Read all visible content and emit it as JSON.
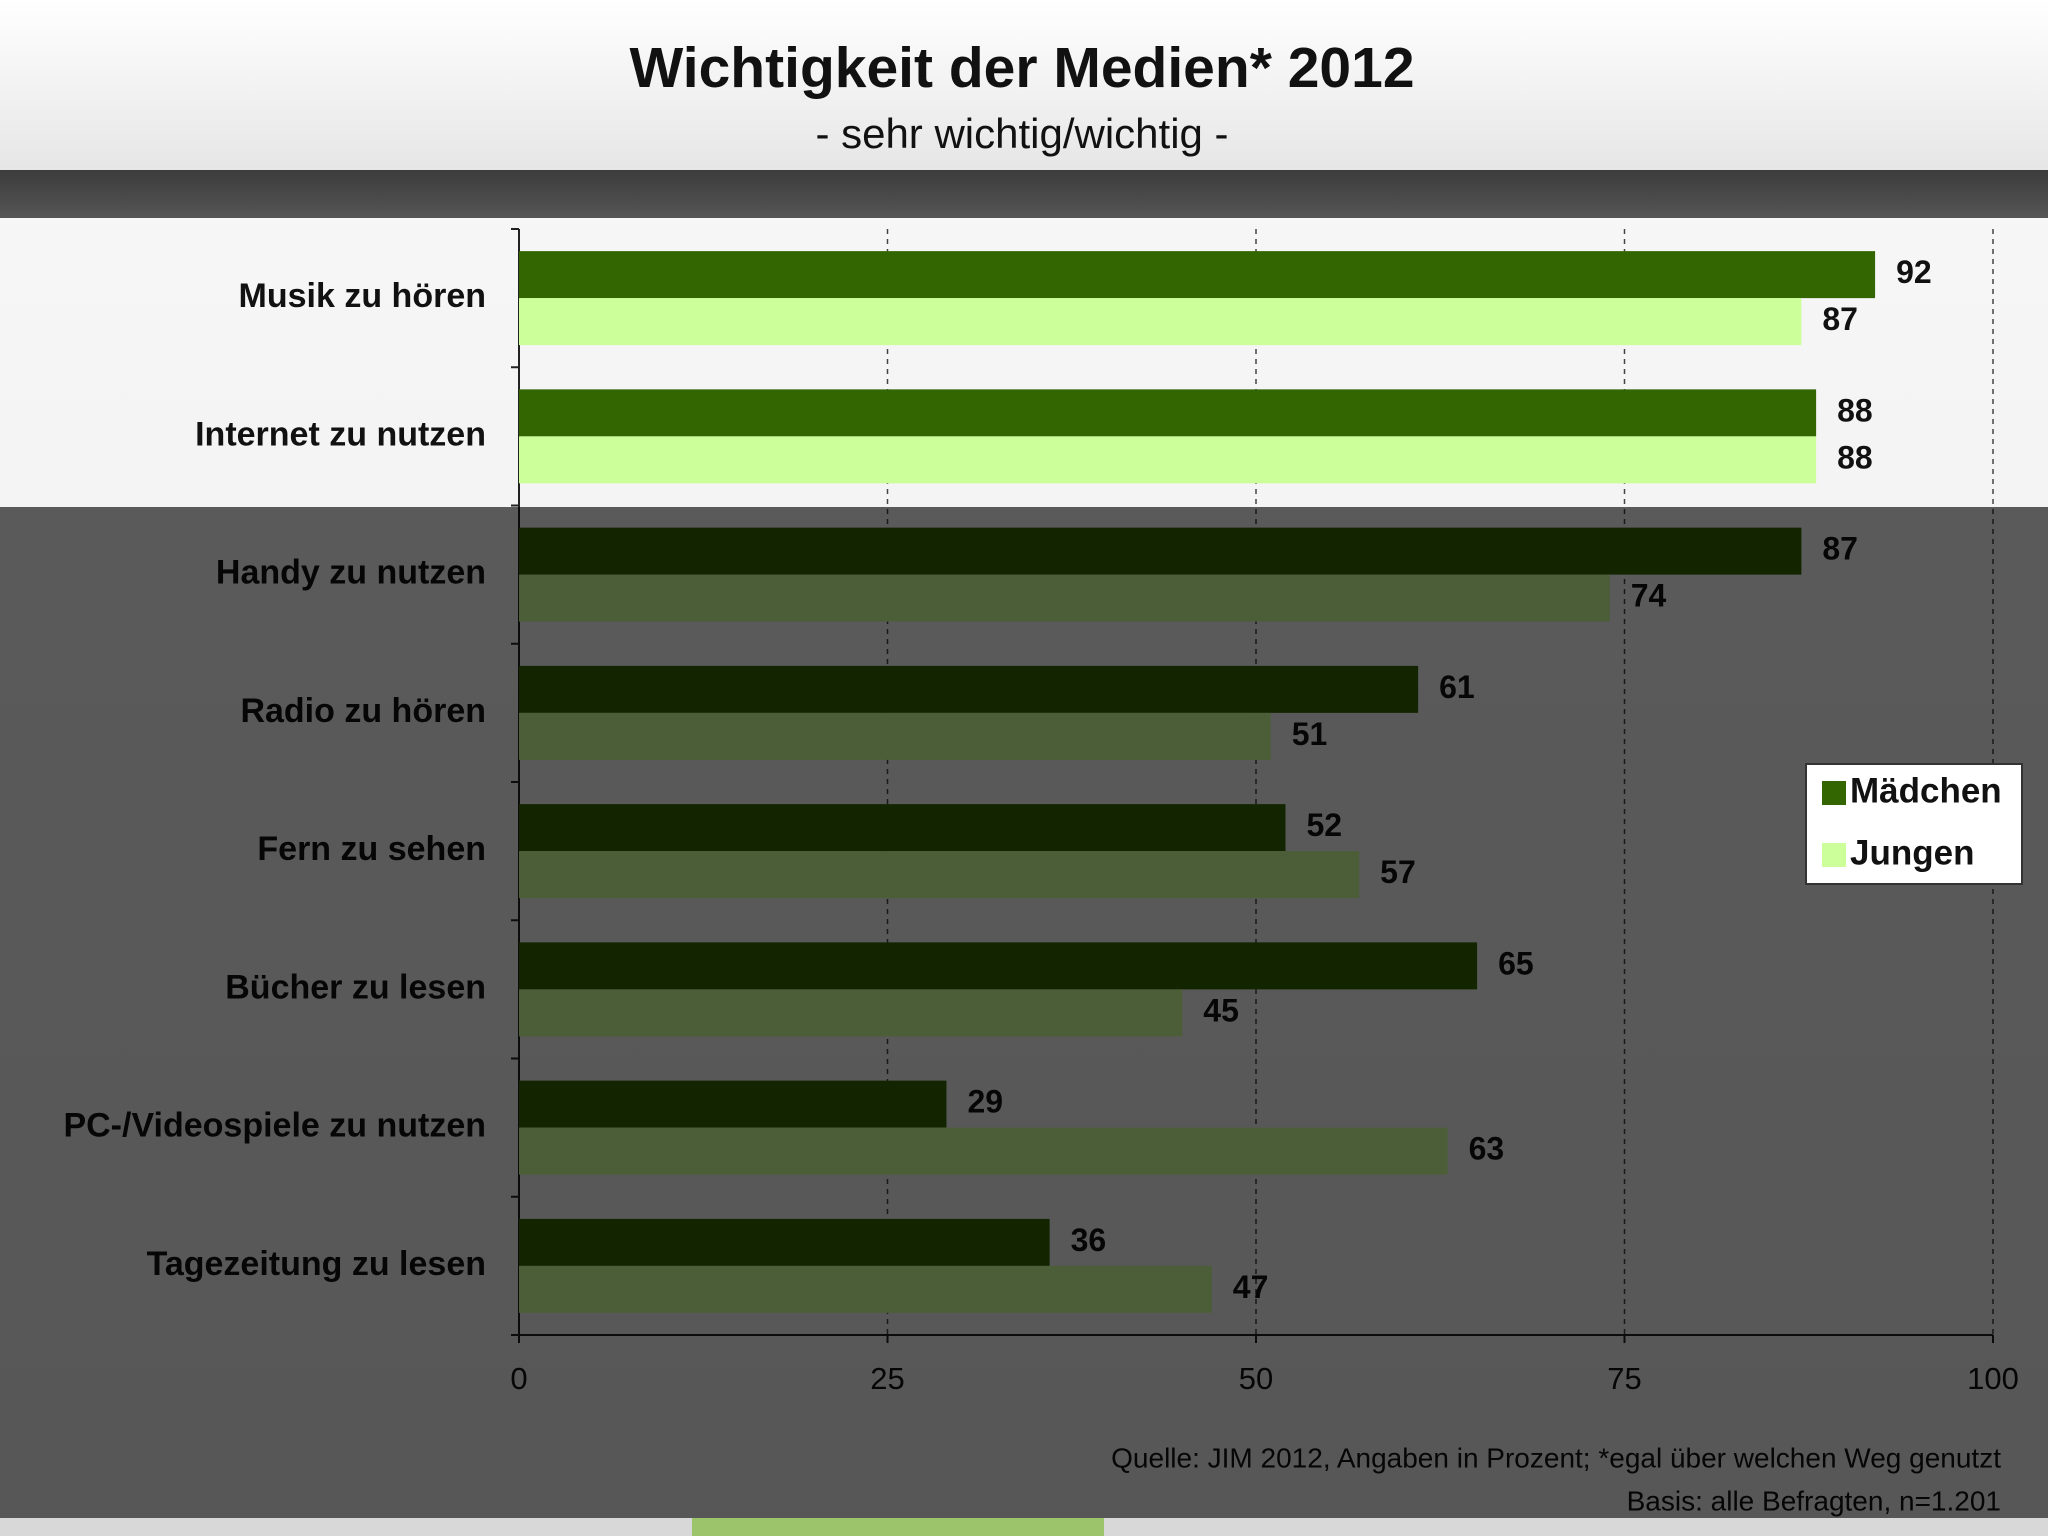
{
  "chart_data": {
    "type": "bar",
    "orientation": "horizontal",
    "title": "Wichtigkeit der Medien* 2012",
    "subtitle": "- sehr wichtig/wichtig -",
    "categories": [
      "Musik zu hören",
      "Internet zu nutzen",
      "Handy zu nutzen",
      "Radio zu hören",
      "Fern zu sehen",
      "Bücher zu lesen",
      "PC-/Videospiele zu nutzen",
      "Tagezeitung zu lesen"
    ],
    "series": [
      {
        "name": "Mädchen",
        "color": "#336600",
        "values": [
          92,
          88,
          87,
          61,
          52,
          65,
          29,
          36
        ]
      },
      {
        "name": "Jungen",
        "color": "#ccff99",
        "values": [
          87,
          88,
          74,
          51,
          57,
          45,
          63,
          47
        ]
      }
    ],
    "xlim": [
      0,
      100
    ],
    "xticks": [
      0,
      25,
      50,
      75,
      100
    ],
    "grid": true,
    "legend": "right",
    "source": "Quelle: JIM 2012, Angaben in Prozent; *egal über welchen Weg genutzt",
    "note": "Basis: alle Befragten, n=1.201"
  }
}
